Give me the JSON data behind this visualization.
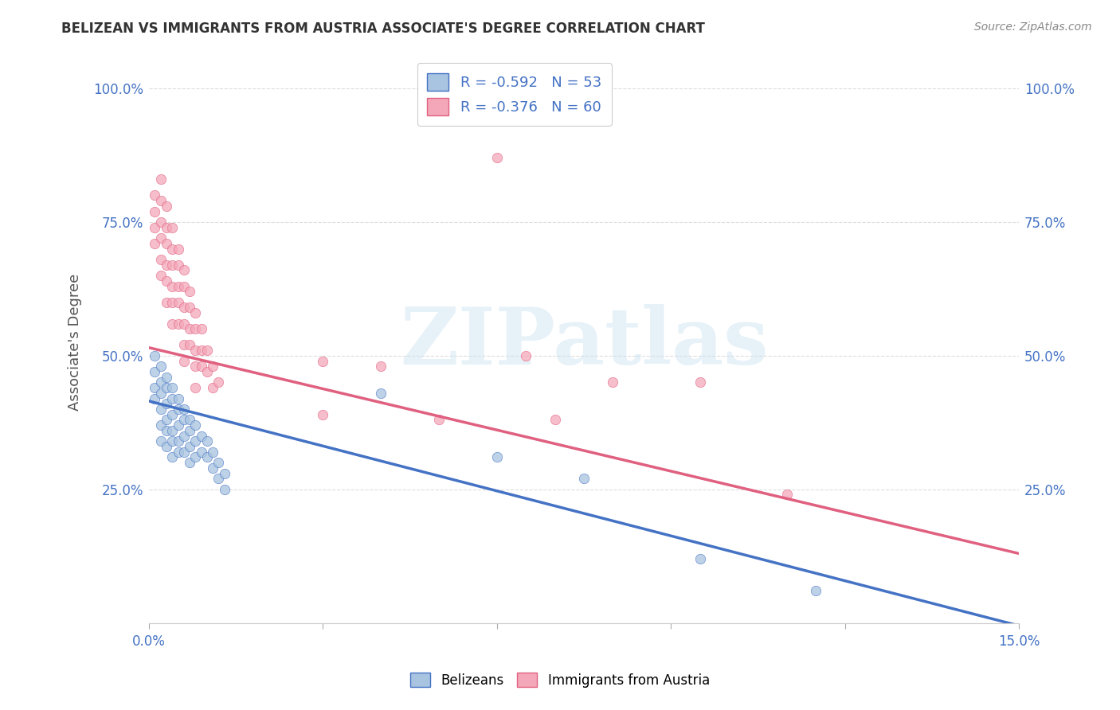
{
  "title": "BELIZEAN VS IMMIGRANTS FROM AUSTRIA ASSOCIATE'S DEGREE CORRELATION CHART",
  "source": "Source: ZipAtlas.com",
  "ylabel": "Associate's Degree",
  "xlim": [
    0.0,
    0.15
  ],
  "ylim": [
    0.0,
    1.05
  ],
  "R_belizean": -0.592,
  "N_belizean": 53,
  "R_austria": -0.376,
  "N_austria": 60,
  "belizean_color": "#a8c4e0",
  "austria_color": "#f4a7b9",
  "blue_line_color": "#4472c4",
  "pink_line_color": "#e06080",
  "watermark_text": "ZIPatlas",
  "bel_line_x0": 0.0,
  "bel_line_y0": 0.415,
  "bel_line_x1": 0.15,
  "bel_line_y1": -0.005,
  "aut_line_x0": 0.0,
  "aut_line_y0": 0.515,
  "aut_line_x1": 0.15,
  "aut_line_y1": 0.13,
  "belizean_points": [
    [
      0.001,
      0.5
    ],
    [
      0.001,
      0.47
    ],
    [
      0.001,
      0.44
    ],
    [
      0.001,
      0.42
    ],
    [
      0.002,
      0.48
    ],
    [
      0.002,
      0.45
    ],
    [
      0.002,
      0.43
    ],
    [
      0.002,
      0.4
    ],
    [
      0.002,
      0.37
    ],
    [
      0.002,
      0.34
    ],
    [
      0.003,
      0.46
    ],
    [
      0.003,
      0.44
    ],
    [
      0.003,
      0.41
    ],
    [
      0.003,
      0.38
    ],
    [
      0.003,
      0.36
    ],
    [
      0.003,
      0.33
    ],
    [
      0.004,
      0.44
    ],
    [
      0.004,
      0.42
    ],
    [
      0.004,
      0.39
    ],
    [
      0.004,
      0.36
    ],
    [
      0.004,
      0.34
    ],
    [
      0.004,
      0.31
    ],
    [
      0.005,
      0.42
    ],
    [
      0.005,
      0.4
    ],
    [
      0.005,
      0.37
    ],
    [
      0.005,
      0.34
    ],
    [
      0.005,
      0.32
    ],
    [
      0.006,
      0.4
    ],
    [
      0.006,
      0.38
    ],
    [
      0.006,
      0.35
    ],
    [
      0.006,
      0.32
    ],
    [
      0.007,
      0.38
    ],
    [
      0.007,
      0.36
    ],
    [
      0.007,
      0.33
    ],
    [
      0.007,
      0.3
    ],
    [
      0.008,
      0.37
    ],
    [
      0.008,
      0.34
    ],
    [
      0.008,
      0.31
    ],
    [
      0.009,
      0.35
    ],
    [
      0.009,
      0.32
    ],
    [
      0.01,
      0.34
    ],
    [
      0.01,
      0.31
    ],
    [
      0.011,
      0.32
    ],
    [
      0.011,
      0.29
    ],
    [
      0.012,
      0.3
    ],
    [
      0.012,
      0.27
    ],
    [
      0.013,
      0.28
    ],
    [
      0.013,
      0.25
    ],
    [
      0.04,
      0.43
    ],
    [
      0.06,
      0.31
    ],
    [
      0.075,
      0.27
    ],
    [
      0.095,
      0.12
    ],
    [
      0.115,
      0.06
    ]
  ],
  "austria_points": [
    [
      0.001,
      0.8
    ],
    [
      0.001,
      0.77
    ],
    [
      0.001,
      0.74
    ],
    [
      0.001,
      0.71
    ],
    [
      0.002,
      0.83
    ],
    [
      0.002,
      0.79
    ],
    [
      0.002,
      0.75
    ],
    [
      0.002,
      0.72
    ],
    [
      0.002,
      0.68
    ],
    [
      0.002,
      0.65
    ],
    [
      0.003,
      0.78
    ],
    [
      0.003,
      0.74
    ],
    [
      0.003,
      0.71
    ],
    [
      0.003,
      0.67
    ],
    [
      0.003,
      0.64
    ],
    [
      0.003,
      0.6
    ],
    [
      0.004,
      0.74
    ],
    [
      0.004,
      0.7
    ],
    [
      0.004,
      0.67
    ],
    [
      0.004,
      0.63
    ],
    [
      0.004,
      0.6
    ],
    [
      0.004,
      0.56
    ],
    [
      0.005,
      0.7
    ],
    [
      0.005,
      0.67
    ],
    [
      0.005,
      0.63
    ],
    [
      0.005,
      0.6
    ],
    [
      0.005,
      0.56
    ],
    [
      0.006,
      0.66
    ],
    [
      0.006,
      0.63
    ],
    [
      0.006,
      0.59
    ],
    [
      0.006,
      0.56
    ],
    [
      0.006,
      0.52
    ],
    [
      0.006,
      0.49
    ],
    [
      0.007,
      0.62
    ],
    [
      0.007,
      0.59
    ],
    [
      0.007,
      0.55
    ],
    [
      0.007,
      0.52
    ],
    [
      0.008,
      0.58
    ],
    [
      0.008,
      0.55
    ],
    [
      0.008,
      0.51
    ],
    [
      0.008,
      0.48
    ],
    [
      0.008,
      0.44
    ],
    [
      0.009,
      0.55
    ],
    [
      0.009,
      0.51
    ],
    [
      0.009,
      0.48
    ],
    [
      0.01,
      0.51
    ],
    [
      0.01,
      0.47
    ],
    [
      0.011,
      0.48
    ],
    [
      0.011,
      0.44
    ],
    [
      0.012,
      0.45
    ],
    [
      0.03,
      0.49
    ],
    [
      0.03,
      0.39
    ],
    [
      0.04,
      0.48
    ],
    [
      0.05,
      0.38
    ],
    [
      0.06,
      0.87
    ],
    [
      0.065,
      0.5
    ],
    [
      0.07,
      0.38
    ],
    [
      0.08,
      0.45
    ],
    [
      0.095,
      0.45
    ],
    [
      0.11,
      0.24
    ]
  ],
  "background_color": "#ffffff",
  "grid_color": "#dddddd",
  "title_color": "#333333",
  "source_color": "#888888",
  "tick_color": "#4472c4",
  "ylabel_color": "#555555"
}
